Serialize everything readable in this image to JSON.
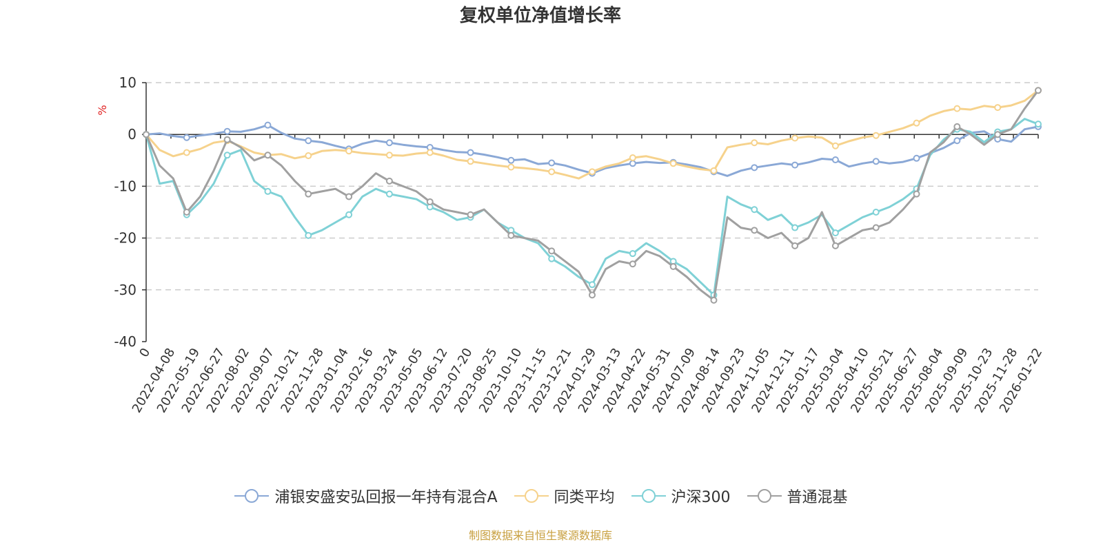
{
  "chart_data": {
    "type": "line",
    "title": "复权单位净值增长率",
    "ylabel": "%",
    "ylim": [
      -40,
      10
    ],
    "y_ticks": [
      10,
      0,
      -10,
      -20,
      -30,
      -40
    ],
    "x_tick_labels": [
      "0",
      "2022-04-08",
      "2022-05-19",
      "2022-06-27",
      "2022-08-02",
      "2022-09-07",
      "2022-10-21",
      "2022-11-28",
      "2023-01-04",
      "2023-02-16",
      "2023-03-24",
      "2023-05-05",
      "2023-06-12",
      "2023-07-20",
      "2023-08-25",
      "2023-10-10",
      "2023-11-15",
      "2023-12-21",
      "2024-01-29",
      "2024-03-13",
      "2024-04-22",
      "2024-05-31",
      "2024-07-09",
      "2024-08-14",
      "2024-09-23",
      "2024-11-05",
      "2024-12-11",
      "2025-01-17",
      "2025-03-04",
      "2025-04-10",
      "2025-05-21",
      "2025-06-27",
      "2025-08-04",
      "2025-09-09",
      "2025-10-23",
      "2025-11-28",
      "2026-01-22"
    ],
    "grid": "horizontal dashed",
    "legend_position": "bottom",
    "series": [
      {
        "name": "浦银安盛安弘回报一年持有混合A",
        "color": "#8aa8d6",
        "values": [
          0,
          0.2,
          -0.3,
          -0.6,
          -0.2,
          0.1,
          0.6,
          0.5,
          1.0,
          1.8,
          0.3,
          -0.8,
          -1.2,
          -1.5,
          -2.2,
          -2.8,
          -1.8,
          -1.2,
          -1.6,
          -2.0,
          -2.3,
          -2.5,
          -3.0,
          -3.4,
          -3.5,
          -3.9,
          -4.4,
          -5.0,
          -4.8,
          -5.7,
          -5.5,
          -6.0,
          -6.8,
          -7.5,
          -6.5,
          -6.0,
          -5.6,
          -5.3,
          -5.5,
          -5.4,
          -5.8,
          -6.3,
          -7.2,
          -8.0,
          -7.0,
          -6.4,
          -6.0,
          -5.6,
          -5.9,
          -5.4,
          -4.7,
          -4.9,
          -6.2,
          -5.6,
          -5.2,
          -5.6,
          -5.3,
          -4.6,
          -3.6,
          -2.6,
          -1.2,
          0.3,
          0.6,
          -0.9,
          -1.4,
          1.0,
          1.5
        ]
      },
      {
        "name": "同类平均",
        "color": "#f6d28c",
        "values": [
          0,
          -3.0,
          -4.2,
          -3.5,
          -2.8,
          -1.6,
          -1.2,
          -2.3,
          -3.5,
          -4.0,
          -3.8,
          -4.6,
          -4.1,
          -3.2,
          -3.0,
          -3.2,
          -3.6,
          -3.8,
          -4.0,
          -4.1,
          -3.7,
          -3.5,
          -4.1,
          -4.9,
          -5.2,
          -5.6,
          -6.0,
          -6.3,
          -6.5,
          -6.8,
          -7.2,
          -7.8,
          -8.5,
          -7.2,
          -6.2,
          -5.6,
          -4.5,
          -4.2,
          -4.8,
          -5.6,
          -6.2,
          -6.7,
          -7.0,
          -2.5,
          -2.0,
          -1.6,
          -1.9,
          -1.2,
          -0.7,
          -0.4,
          -0.6,
          -2.2,
          -1.3,
          -0.6,
          -0.2,
          0.5,
          1.2,
          2.2,
          3.6,
          4.5,
          5.0,
          4.8,
          5.5,
          5.2,
          5.6,
          6.5,
          8.5
        ]
      },
      {
        "name": "沪深300",
        "color": "#7fd1d6",
        "values": [
          0,
          -9.5,
          -9.0,
          -15.5,
          -13.0,
          -9.5,
          -4.0,
          -3.0,
          -9.0,
          -11.0,
          -12.0,
          -16.0,
          -19.5,
          -18.5,
          -17.0,
          -15.5,
          -12.0,
          -10.5,
          -11.5,
          -12.0,
          -12.5,
          -14.0,
          -15.0,
          -16.5,
          -16.0,
          -14.5,
          -17.0,
          -18.5,
          -20.0,
          -21.0,
          -24.0,
          -25.5,
          -27.5,
          -29.0,
          -24.0,
          -22.5,
          -23.0,
          -21.0,
          -22.5,
          -24.5,
          -26.0,
          -28.5,
          -31.0,
          -12.0,
          -13.5,
          -14.5,
          -16.5,
          -15.5,
          -18.0,
          -17.0,
          -15.5,
          -19.0,
          -17.5,
          -16.0,
          -15.0,
          -14.0,
          -12.5,
          -10.5,
          -4.0,
          -1.0,
          1.0,
          0.5,
          -1.5,
          0.5,
          1.0,
          3.0,
          2.0
        ]
      },
      {
        "name": "普通混基",
        "color": "#a0a0a0",
        "values": [
          0,
          -6.0,
          -8.5,
          -15.0,
          -12.0,
          -7.0,
          -1.0,
          -2.5,
          -5.0,
          -4.0,
          -6.0,
          -9.0,
          -11.5,
          -11.0,
          -10.5,
          -12.0,
          -10.0,
          -7.5,
          -9.0,
          -10.0,
          -11.0,
          -13.0,
          -14.5,
          -15.0,
          -15.5,
          -14.5,
          -17.0,
          -19.5,
          -20.0,
          -20.5,
          -22.5,
          -24.5,
          -26.5,
          -31.0,
          -26.0,
          -24.5,
          -25.0,
          -22.5,
          -23.5,
          -25.5,
          -27.5,
          -30.0,
          -32.0,
          -16.0,
          -18.0,
          -18.5,
          -20.0,
          -19.0,
          -21.5,
          -20.0,
          -15.0,
          -21.5,
          -20.0,
          -18.5,
          -18.0,
          -17.0,
          -14.5,
          -11.5,
          -3.5,
          -1.5,
          1.5,
          0.0,
          -2.0,
          0.0,
          1.0,
          5.0,
          8.5
        ]
      }
    ]
  },
  "legend_items": [
    "浦银安盛安弘回报一年持有混合A",
    "同类平均",
    "沪深300",
    "普通混基"
  ],
  "source_note": "制图数据来自恒生聚源数据库"
}
